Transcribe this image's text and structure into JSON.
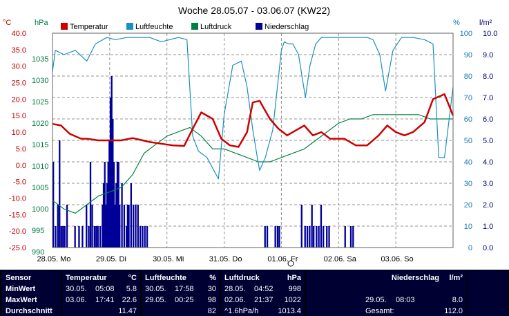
{
  "chart_data": {
    "type": "line",
    "title": "Woche 28.05.07 - 03.06.07 (KW22)",
    "x_ticks": [
      "28.05.  Mo",
      "29.05.  Di",
      "30.05.  Mi",
      "31.05.  Do",
      "01.06.  Fr",
      "02.06.  Sa",
      "03.06.  So"
    ],
    "x_range_days": [
      0,
      7
    ],
    "axes": {
      "temperature": {
        "unit": "°C",
        "range": [
          -25,
          40
        ],
        "ticks": [
          "40.0",
          "35.0",
          "30.0",
          "25.0",
          "20.0",
          "15.0",
          "10.0",
          "5.0",
          "0.0",
          "-5.0",
          "-10.0",
          "-15.0",
          "-20.0",
          "-25.0"
        ],
        "color": "#c00000"
      },
      "pressure": {
        "unit": "hPa",
        "range": [
          990,
          1040
        ],
        "ticks": [
          "1035",
          "1030",
          "1025",
          "1020",
          "1015",
          "1010",
          "1005",
          "1000",
          "995",
          "990"
        ],
        "color": "#007a40"
      },
      "humidity": {
        "unit": "%",
        "range": [
          0,
          100
        ],
        "ticks": [
          "100",
          "90",
          "80",
          "70",
          "60",
          "50",
          "40",
          "30",
          "20",
          "10",
          "0"
        ],
        "color": "#1a7ab0"
      },
      "rain": {
        "unit": "l/m²",
        "range": [
          0,
          10
        ],
        "ticks": [
          "10.0",
          "9.0",
          "8.0",
          "7.0",
          "6.0",
          "5.0",
          "4.0",
          "3.0",
          "2.0",
          "1.0",
          "0.0"
        ],
        "color": "#00007a"
      }
    },
    "legend": [
      {
        "name": "Temperatur",
        "color": "#cc0000"
      },
      {
        "name": "Luftfeuchte",
        "color": "#1a8fc0"
      },
      {
        "name": "Luftdruck",
        "color": "#008040"
      },
      {
        "name": "Niederschlag",
        "color": "#000099"
      }
    ],
    "grid": true,
    "series": [
      {
        "name": "Temperatur",
        "axis": "temperature",
        "color": "#cc0000",
        "x": [
          0,
          0.15,
          0.3,
          0.5,
          0.6,
          0.8,
          1.0,
          1.2,
          1.4,
          1.55,
          1.7,
          1.9,
          2.1,
          2.3,
          2.45,
          2.6,
          2.8,
          2.95,
          3.1,
          3.25,
          3.4,
          3.5,
          3.62,
          3.8,
          3.95,
          4.1,
          4.25,
          4.4,
          4.55,
          4.7,
          4.85,
          4.95,
          5.1,
          5.3,
          5.5,
          5.7,
          5.85,
          6.0,
          6.15,
          6.3,
          6.5,
          6.65,
          6.85,
          7.0
        ],
        "y": [
          12.5,
          12,
          9.5,
          8,
          8,
          7.5,
          7.5,
          7.5,
          8.2,
          7.6,
          7,
          6.5,
          6,
          5.8,
          11,
          16,
          14,
          8,
          6,
          5.5,
          10,
          19,
          19.5,
          14,
          11,
          9,
          10.5,
          12,
          9,
          10,
          8,
          8,
          8,
          6,
          6,
          9,
          12,
          10,
          9,
          10,
          13,
          20,
          21.5,
          15
        ]
      },
      {
        "name": "Luftfeuchte",
        "axis": "humidity",
        "color": "#1a8fc0",
        "x": [
          0,
          0.05,
          0.2,
          0.4,
          0.6,
          0.75,
          0.95,
          1.1,
          1.3,
          1.5,
          1.7,
          1.9,
          2.2,
          2.35,
          2.45,
          2.55,
          2.7,
          2.8,
          2.9,
          3.0,
          3.15,
          3.3,
          3.4,
          3.5,
          3.58,
          3.62,
          3.72,
          3.85,
          4.0,
          4.05,
          4.12,
          4.2,
          4.3,
          4.42,
          4.5,
          4.6,
          4.7,
          4.82,
          4.9,
          5.0,
          5.2,
          5.5,
          5.6,
          5.72,
          5.82,
          5.95,
          6.1,
          6.3,
          6.5,
          6.65,
          6.75,
          6.85,
          7.0
        ],
        "y": [
          82,
          92,
          90,
          92,
          87,
          95,
          98,
          97,
          98,
          98,
          98,
          96,
          98,
          97,
          52,
          45,
          42,
          37,
          32,
          62,
          85,
          87,
          75,
          55,
          42,
          36,
          42,
          55,
          92,
          96,
          95,
          95,
          90,
          70,
          85,
          95,
          98,
          98,
          98,
          98,
          98,
          98,
          97,
          90,
          73,
          92,
          98,
          98,
          97,
          95,
          42,
          42,
          75
        ]
      },
      {
        "name": "Luftdruck",
        "axis": "pressure",
        "color": "#008040",
        "x": [
          0,
          0.2,
          0.4,
          0.6,
          0.8,
          1.0,
          1.2,
          1.4,
          1.6,
          1.8,
          2.0,
          2.2,
          2.4,
          2.6,
          2.8,
          3.0,
          3.2,
          3.4,
          3.6,
          3.8,
          4.0,
          4.2,
          4.4,
          4.6,
          4.8,
          5.0,
          5.2,
          5.4,
          5.6,
          5.8,
          6.0,
          6.2,
          6.4,
          6.6,
          6.8,
          7.0
        ],
        "y": [
          1001,
          999,
          998,
          1000,
          1002,
          1003,
          1004,
          1007,
          1012,
          1014,
          1016,
          1017,
          1018,
          1016,
          1013,
          1013,
          1012,
          1011,
          1010,
          1010,
          1011,
          1012,
          1013,
          1015,
          1017,
          1019,
          1020,
          1020,
          1021,
          1021,
          1021,
          1021,
          1021,
          1020,
          1020,
          1020
        ]
      },
      {
        "name": "Niederschlag",
        "axis": "rain",
        "color": "#000099",
        "kind": "bars",
        "bar_width_days": 0.028,
        "x": [
          0.0,
          0.04,
          0.08,
          0.11,
          0.14,
          0.17,
          0.2,
          0.24,
          0.38,
          0.45,
          0.51,
          0.58,
          0.62,
          0.65,
          0.68,
          0.72,
          0.75,
          0.78,
          0.82,
          0.86,
          0.88,
          0.9,
          0.92,
          0.94,
          0.96,
          0.98,
          1.0,
          1.02,
          1.04,
          1.06,
          1.08,
          1.1,
          1.12,
          1.14,
          1.16,
          1.2,
          1.24,
          1.28,
          1.3,
          1.32,
          1.36,
          1.4,
          1.44,
          1.48,
          1.52,
          1.56,
          1.6,
          1.64,
          3.7,
          3.74,
          3.88,
          3.92,
          3.95,
          4.34,
          4.4,
          4.44,
          4.48,
          4.52,
          4.55,
          4.6,
          4.64,
          4.68,
          4.72,
          4.78,
          4.82,
          5.1,
          5.2,
          5.24
        ],
        "y": [
          4.0,
          1.0,
          2.0,
          5.0,
          1.0,
          1.0,
          1.0,
          2.0,
          1.0,
          1.0,
          1.0,
          2.0,
          1.0,
          4.0,
          2.0,
          1.0,
          1.0,
          1.0,
          1.0,
          2.0,
          3.0,
          4.0,
          2.0,
          3.0,
          4.0,
          5.0,
          7.0,
          8.0,
          6.0,
          4.0,
          2.0,
          3.0,
          4.0,
          4.0,
          2.0,
          3.0,
          2.0,
          1.0,
          2.0,
          2.0,
          3.0,
          2.0,
          2.0,
          2.0,
          1.0,
          1.0,
          1.0,
          1.0,
          1.0,
          1.0,
          1.0,
          1.0,
          1.0,
          2.0,
          1.0,
          1.0,
          1.0,
          2.0,
          1.0,
          1.0,
          1.0,
          2.0,
          1.0,
          1.0,
          1.0,
          1.0,
          1.0,
          1.0
        ]
      }
    ]
  },
  "stats": {
    "sensor": {
      "header": "Sensor",
      "min": "MinWert",
      "max": "MaxWert",
      "avg": "Durchschnitt"
    },
    "temperature": {
      "header": "Temperatur",
      "unit": "°C",
      "min_date": "30.05.",
      "min_time": "05:08",
      "min_val": "5.8",
      "max_date": "03.06.",
      "max_time": "17:41",
      "max_val": "22.6",
      "avg_val": "11.47"
    },
    "humidity": {
      "header": "Luftfeuchte",
      "unit": "%",
      "min_date": "30.05.",
      "min_time": "17:58",
      "min_val": "30",
      "max_date": "29.05.",
      "max_time": "00:25",
      "max_val": "98",
      "avg_val": "82"
    },
    "pressure": {
      "header": "Luftdruck",
      "unit": "hPa",
      "min_date": "28.05.",
      "min_time": "04:52",
      "min_val": "998",
      "max_date": "02.06.",
      "max_time": "21:37",
      "max_val": "1022",
      "avg_label": "^1.6hPa/h",
      "avg_val": "1013.4"
    },
    "rain": {
      "header": "Niederschlag",
      "unit": "l/m²",
      "max_date": "29.05.",
      "max_time": "08:03",
      "max_val": "8.0",
      "total_label": "Gesamt:",
      "total_val": "112.0"
    }
  }
}
